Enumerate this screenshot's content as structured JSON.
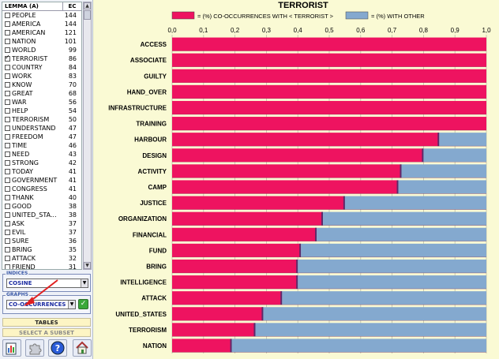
{
  "list": {
    "header_word": "LEMMA (A)",
    "header_count": "EC",
    "items": [
      {
        "word": "PEOPLE",
        "count": "144",
        "checked": false
      },
      {
        "word": "AMERICA",
        "count": "144",
        "checked": false
      },
      {
        "word": "AMERICAN",
        "count": "121",
        "checked": false
      },
      {
        "word": "NATION",
        "count": "101",
        "checked": false
      },
      {
        "word": "WORLD",
        "count": "99",
        "checked": false
      },
      {
        "word": "TERRORIST",
        "count": "86",
        "checked": true
      },
      {
        "word": "COUNTRY",
        "count": "84",
        "checked": false
      },
      {
        "word": "WORK",
        "count": "83",
        "checked": false
      },
      {
        "word": "KNOW",
        "count": "70",
        "checked": false
      },
      {
        "word": "GREAT",
        "count": "68",
        "checked": false
      },
      {
        "word": "WAR",
        "count": "56",
        "checked": false
      },
      {
        "word": "HELP",
        "count": "54",
        "checked": false
      },
      {
        "word": "TERRORISM",
        "count": "50",
        "checked": false
      },
      {
        "word": "UNDERSTAND",
        "count": "47",
        "checked": false
      },
      {
        "word": "FREEDOM",
        "count": "47",
        "checked": false
      },
      {
        "word": "TIME",
        "count": "46",
        "checked": false
      },
      {
        "word": "NEED",
        "count": "43",
        "checked": false
      },
      {
        "word": "STRONG",
        "count": "42",
        "checked": false
      },
      {
        "word": "TODAY",
        "count": "41",
        "checked": false
      },
      {
        "word": "GOVERNMENT",
        "count": "41",
        "checked": false
      },
      {
        "word": "CONGRESS",
        "count": "41",
        "checked": false
      },
      {
        "word": "THANK",
        "count": "40",
        "checked": false
      },
      {
        "word": "GOOD",
        "count": "38",
        "checked": false
      },
      {
        "word": "UNITED_STA...",
        "count": "38",
        "checked": false
      },
      {
        "word": "ASK",
        "count": "37",
        "checked": false
      },
      {
        "word": "EVIL",
        "count": "37",
        "checked": false
      },
      {
        "word": "SURE",
        "count": "36",
        "checked": false
      },
      {
        "word": "BRING",
        "count": "35",
        "checked": false
      },
      {
        "word": "ATTACK",
        "count": "32",
        "checked": false
      },
      {
        "word": "FRIEND",
        "count": "31",
        "checked": false
      }
    ]
  },
  "indices": {
    "label": "INDICES",
    "value": "COSINE"
  },
  "graphs": {
    "label": "GRAPHS",
    "value": "CO-OCCURRENCES"
  },
  "buttons": {
    "tables": "TABLES",
    "subset": "SELECT A SUBSET"
  },
  "colors": {
    "pink": "#ee1360",
    "blue": "#84a9cf",
    "accent": "#e02020"
  },
  "icons": [
    "report-icon",
    "puzzle-icon",
    "help-icon",
    "home-icon"
  ],
  "chart_data": {
    "type": "bar",
    "orientation": "horizontal-stacked-100",
    "title": "TERRORIST",
    "legend": [
      {
        "label": "= (%) CO-OCCURRENCES WITH  < TERRORIST >",
        "color": "#ee1360"
      },
      {
        "label": "= (%)  WITH OTHER",
        "color": "#84a9cf"
      }
    ],
    "legend_position": "top",
    "xlim": [
      0,
      1
    ],
    "xticks": [
      "0,0",
      "0,1",
      "0,2",
      "0,3",
      "0,4",
      "0,5",
      "0,6",
      "0,7",
      "0,8",
      "0,9",
      "1,0"
    ],
    "grid": true,
    "categories": [
      "ACCESS",
      "ASSOCIATE",
      "GUILTY",
      "HAND_OVER",
      "INFRASTRUCTURE",
      "TRAINING",
      "HARBOUR",
      "DESIGN",
      "ACTIVITY",
      "CAMP",
      "JUSTICE",
      "ORGANIZATION",
      "FINANCIAL",
      "FUND",
      "BRING",
      "INTELLIGENCE",
      "ATTACK",
      "UNITED_STATES",
      "TERRORISM",
      "NATION"
    ],
    "series": [
      {
        "name": "= (%) CO-OCCURRENCES WITH  < TERRORIST >",
        "values": [
          1,
          1,
          1,
          1,
          1,
          1,
          0.85,
          0.8,
          0.73,
          0.72,
          0.55,
          0.48,
          0.46,
          0.41,
          0.4,
          0.4,
          0.35,
          0.29,
          0.265,
          0.19
        ]
      },
      {
        "name": "= (%)  WITH OTHER",
        "values": [
          0,
          0,
          0,
          0,
          0,
          0,
          0.15,
          0.2,
          0.27,
          0.28,
          0.45,
          0.52,
          0.54,
          0.59,
          0.6,
          0.6,
          0.65,
          0.71,
          0.735,
          0.81
        ]
      }
    ]
  }
}
